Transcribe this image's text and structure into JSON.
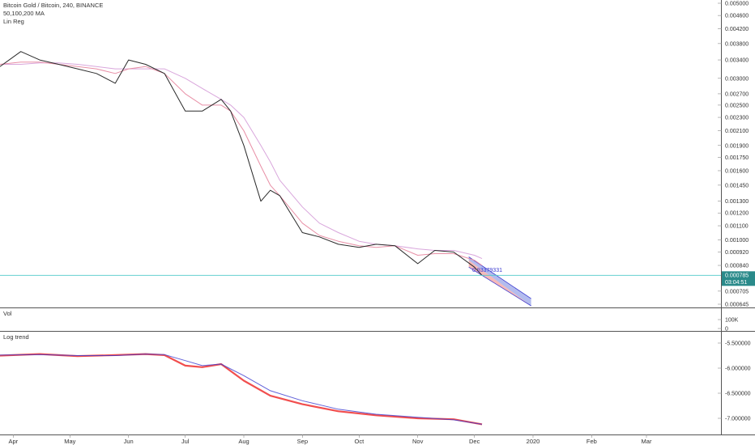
{
  "header": {
    "symbol": "Bitcoin Gold / Bitcoin, 240, BINANCE",
    "ma_label": "50,100,200 MA",
    "linreg_label": "Lin Reg"
  },
  "panes": {
    "volume_label": "Vol",
    "logtrend_label": "Log trend"
  },
  "price_badge": {
    "value": "0.000785",
    "countdown": "03:04:51"
  },
  "regression_annotation": "0.93379331",
  "colors": {
    "price": "#2a2a2a",
    "ma_fast": "#e88fa6",
    "ma_slow": "#d9a6dc",
    "trend_red": "#ef3b3b",
    "trend_blue": "#3a3ad0",
    "regression_fill": "#9aa6e8",
    "regression_inner": "#f2a1a1",
    "price_line": "#4fc8c8",
    "badge": "#2a8a8a"
  },
  "chart_data": [
    {
      "type": "line",
      "name": "main",
      "x_ticks": [
        "Apr",
        "May",
        "Jun",
        "Jul",
        "Aug",
        "Sep",
        "Oct",
        "Nov",
        "Dec",
        "2020",
        "Feb",
        "Mar"
      ],
      "y_ticks": [
        "0.005000",
        "0.004600",
        "0.004200",
        "0.003800",
        "0.003400",
        "0.003000",
        "0.002700",
        "0.002500",
        "0.002300",
        "0.002100",
        "0.001900",
        "0.001750",
        "0.001600",
        "0.001450",
        "0.001300",
        "0.001200",
        "0.001100",
        "0.001000",
        "0.000920",
        "0.000840",
        "0.000705",
        "0.000645"
      ],
      "y_scale": "log",
      "x": [
        "2019-03-25",
        "2019-04-05",
        "2019-04-15",
        "2019-04-25",
        "2019-05-05",
        "2019-05-15",
        "2019-05-25",
        "2019-06-01",
        "2019-06-10",
        "2019-06-20",
        "2019-07-01",
        "2019-07-10",
        "2019-07-20",
        "2019-07-25",
        "2019-08-01",
        "2019-08-10",
        "2019-08-15",
        "2019-08-20",
        "2019-09-01",
        "2019-09-10",
        "2019-09-20",
        "2019-10-01",
        "2019-10-10",
        "2019-10-20",
        "2019-11-01",
        "2019-11-10",
        "2019-11-20",
        "2019-12-01",
        "2019-12-05"
      ],
      "series": [
        {
          "values": [
            0.00325,
            0.0036,
            0.0034,
            0.0033,
            0.0032,
            0.0031,
            0.0029,
            0.0034,
            0.0033,
            0.0031,
            0.0024,
            0.0024,
            0.0026,
            0.0024,
            0.0019,
            0.0013,
            0.0014,
            0.00135,
            0.00105,
            0.00102,
            0.00097,
            0.00095,
            0.00097,
            0.00096,
            0.00085,
            0.00093,
            0.00092,
            0.00083,
            0.000785
          ]
        },
        {
          "values": [
            0.0033,
            0.00335,
            0.00335,
            0.0033,
            0.00325,
            0.0032,
            0.0031,
            0.0032,
            0.00325,
            0.0031,
            0.0027,
            0.0025,
            0.0025,
            0.0024,
            0.0021,
            0.00165,
            0.00145,
            0.00135,
            0.00112,
            0.00103,
            0.00099,
            0.00096,
            0.00095,
            0.00096,
            0.0009,
            0.00091,
            0.00091,
            0.00087,
            0.00084
          ]
        },
        {
          "values": [
            0.0033,
            0.0033,
            0.00333,
            0.00333,
            0.0033,
            0.00325,
            0.0032,
            0.0032,
            0.0032,
            0.0032,
            0.003,
            0.0028,
            0.0026,
            0.0025,
            0.0023,
            0.0019,
            0.0017,
            0.0015,
            0.00125,
            0.00112,
            0.00105,
            0.00099,
            0.00097,
            0.00096,
            0.00094,
            0.00093,
            0.00093,
            0.0009,
            0.00088
          ]
        }
      ],
      "current_price": 0.000785,
      "regression_channel": {
        "x": [
          "2019-11-28",
          "2019-12-31"
        ],
        "center": [
          0.00087,
          0.00062
        ],
        "upper": [
          0.00089,
          0.00067
        ],
        "lower": [
          0.00083,
          0.0006
        ]
      }
    },
    {
      "type": "bar",
      "name": "volume",
      "y_ticks": [
        "100K",
        "0"
      ]
    },
    {
      "type": "line",
      "name": "log trend",
      "y_ticks": [
        "-5.500000",
        "-6.000000",
        "-6.500000",
        "-7.000000"
      ],
      "x": [
        "2019-03-25",
        "2019-04-15",
        "2019-05-05",
        "2019-05-25",
        "2019-06-10",
        "2019-06-20",
        "2019-07-01",
        "2019-07-10",
        "2019-07-20",
        "2019-08-01",
        "2019-08-15",
        "2019-09-01",
        "2019-09-20",
        "2019-10-10",
        "2019-11-01",
        "2019-11-20",
        "2019-12-05"
      ],
      "series": [
        {
          "values": [
            -5.75,
            -5.72,
            -5.76,
            -5.74,
            -5.72,
            -5.74,
            -5.95,
            -5.98,
            -5.92,
            -6.25,
            -6.55,
            -6.72,
            -6.86,
            -6.94,
            -7.0,
            -7.02,
            -7.12
          ]
        },
        {
          "values": [
            -5.74,
            -5.73,
            -5.75,
            -5.75,
            -5.72,
            -5.73,
            -5.85,
            -5.95,
            -5.92,
            -6.15,
            -6.45,
            -6.65,
            -6.82,
            -6.92,
            -6.98,
            -7.03,
            -7.12
          ]
        }
      ]
    }
  ]
}
